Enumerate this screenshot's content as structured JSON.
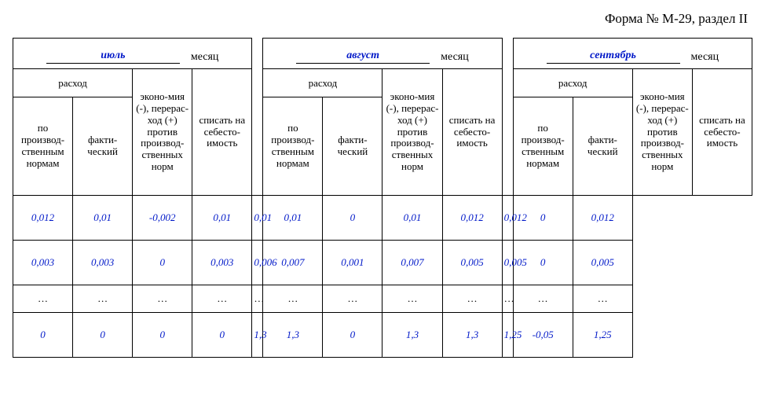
{
  "form_title": "Форма № М-29, раздел II",
  "month_word": "месяц",
  "header": {
    "rashod": "расход",
    "col1": "по производ-ственным нормам",
    "col2": "факти-ческий",
    "col3": "эконо-мия (-), перерас-ход (+) против производ-ственных норм",
    "col4": "списать на себесто-имость"
  },
  "months": [
    "июль",
    "август",
    "сентябрь"
  ],
  "rows": [
    {
      "type": "data",
      "m0": [
        "0,012",
        "0,01",
        "-0,002",
        "0,01"
      ],
      "m1": [
        "0,01",
        "0,01",
        "0",
        "0,01"
      ],
      "m2": [
        "0,012",
        "0,012",
        "0",
        "0,012"
      ]
    },
    {
      "type": "data",
      "m0": [
        "0,003",
        "0,003",
        "0",
        "0,003"
      ],
      "m1": [
        "0,006",
        "0,007",
        "0,001",
        "0,007"
      ],
      "m2": [
        "0,005",
        "0,005",
        "0",
        "0,005"
      ]
    },
    {
      "type": "dots"
    },
    {
      "type": "data",
      "m0": [
        "0",
        "0",
        "0",
        "0"
      ],
      "m1": [
        "1,3",
        "1,3",
        "0",
        "1,3"
      ],
      "m2": [
        "1,3",
        "1,25",
        "-0,05",
        "1,25"
      ]
    }
  ],
  "dots": "…",
  "style": {
    "value_color": "#0018c8",
    "border_color": "#000000",
    "background": "#ffffff",
    "font_family": "Times New Roman",
    "title_fontsize": 17,
    "header_fontsize": 13,
    "value_fontsize": 14
  }
}
